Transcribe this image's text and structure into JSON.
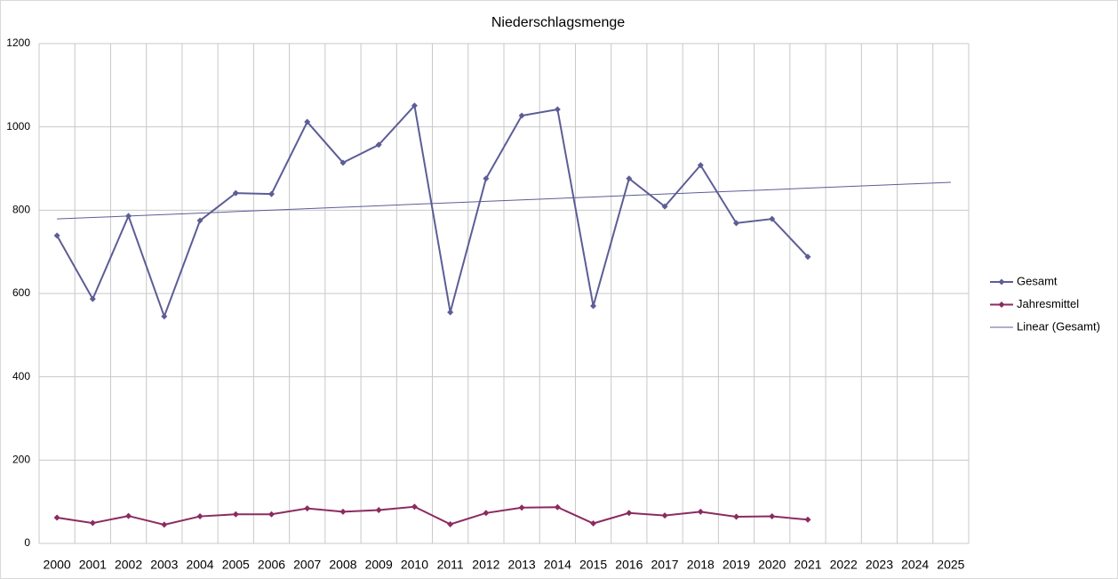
{
  "chart_data": {
    "type": "line",
    "title": "Niederschlagsmenge",
    "categories": [
      "2000",
      "2001",
      "2002",
      "2003",
      "2004",
      "2005",
      "2006",
      "2007",
      "2008",
      "2009",
      "2010",
      "2011",
      "2012",
      "2013",
      "2014",
      "2015",
      "2016",
      "2017",
      "2018",
      "2019",
      "2020",
      "2021",
      "2022",
      "2023",
      "2024",
      "2025"
    ],
    "series": [
      {
        "name": "Gesamt",
        "color": "#5d5d96",
        "marker": true,
        "width": 2,
        "values": [
          739,
          587,
          786,
          545,
          775,
          841,
          839,
          1012,
          914,
          957,
          1051,
          555,
          876,
          1027,
          1042,
          570,
          876,
          809,
          908,
          769,
          779,
          688,
          null,
          null,
          null,
          null
        ]
      },
      {
        "name": "Jahresmittel",
        "color": "#8b2b5f",
        "marker": true,
        "width": 2,
        "values": [
          62,
          49,
          66,
          45,
          65,
          70,
          70,
          84,
          76,
          80,
          88,
          46,
          73,
          86,
          87,
          48,
          73,
          67,
          76,
          64,
          65,
          57,
          null,
          null,
          null,
          null
        ]
      },
      {
        "name": "Linear (Gesamt)",
        "color": "#5d5d96",
        "marker": false,
        "width": 1,
        "values": [
          779,
          782.5,
          786,
          789.6,
          793.1,
          796.6,
          800.1,
          803.6,
          807.2,
          810.7,
          814.2,
          817.7,
          821.2,
          824.8,
          828.3,
          831.8,
          835.3,
          838.8,
          842.4,
          845.9,
          849.4,
          852.9,
          856.4,
          860,
          863.5,
          867
        ]
      }
    ],
    "ylim": [
      0,
      1200
    ],
    "yticks": [
      0,
      200,
      400,
      600,
      800,
      1000,
      1200
    ],
    "grid": true,
    "legend": "right"
  }
}
